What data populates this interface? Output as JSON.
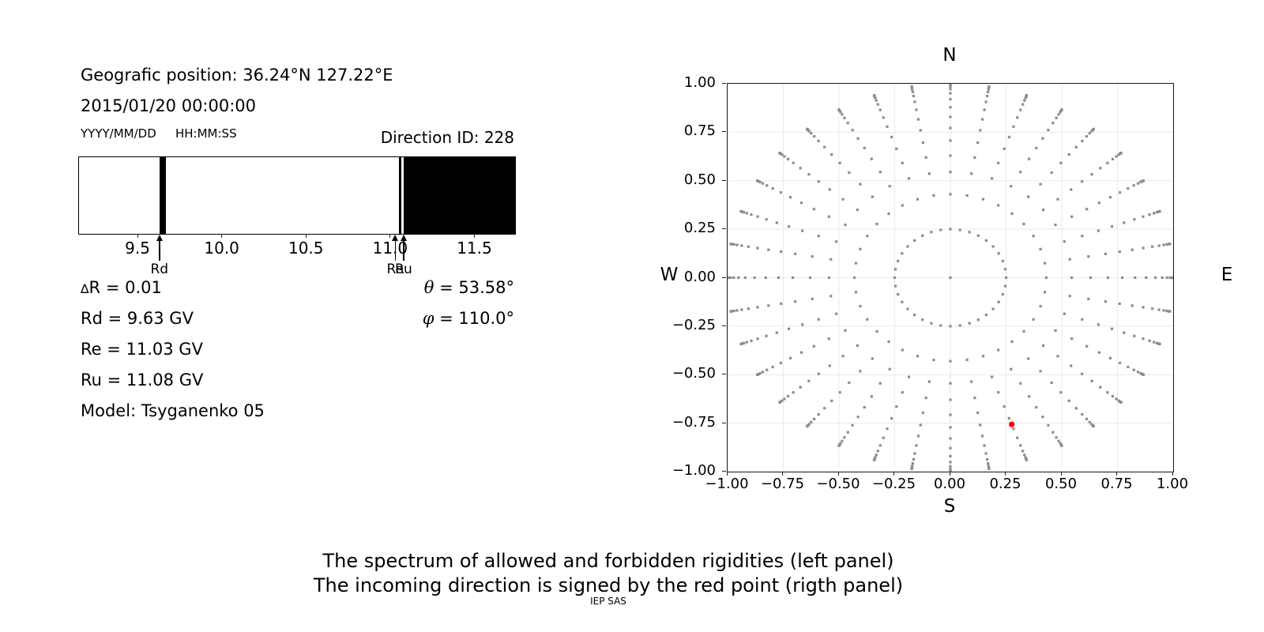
{
  "header": {
    "position_line": "Geografic position: 36.24°N 127.22°E",
    "datetime_line": "2015/01/20 00:00:00",
    "date_format_hint": "YYYY/MM/DD",
    "time_format_hint": "HH:MM:SS",
    "direction_id": "Direction ID: 228"
  },
  "parameters": {
    "delta_r": {
      "symbol": "∆",
      "rest": "R = 0.01"
    },
    "rd": "Rd = 9.63 GV",
    "re": "Re = 11.03 GV",
    "ru": "Ru = 11.08 GV",
    "model": "Model: Tsyganenko 05",
    "theta": {
      "symbol": "θ",
      "rest": " = 53.58°"
    },
    "phi": {
      "symbol": "φ",
      "rest": " = 110.0°"
    }
  },
  "captions": {
    "line1": "The spectrum of allowed and forbidden rigidities (left panel)",
    "line2": "The incoming direction is signed by the red point (rigth panel)",
    "credit": "IEP SAS"
  },
  "chart_data": [
    {
      "type": "bar",
      "name": "rigidity-spectrum",
      "title": "",
      "xlim": [
        9.148,
        11.737
      ],
      "xticks": [
        9.5,
        10.0,
        10.5,
        11.0,
        11.5
      ],
      "xtick_labels": [
        "9.5",
        "10.0",
        "10.5",
        "11.0",
        "11.5"
      ],
      "allowed_color": "#ffffff",
      "forbidden_color": "#000000",
      "forbidden_bands_gv": [
        [
          9.625,
          9.664
        ],
        [
          11.047,
          11.061
        ],
        [
          11.075,
          11.737
        ]
      ],
      "markers": [
        {
          "label": "Rd",
          "value_gv": 9.63
        },
        {
          "label": "Re",
          "value_gv": 11.03
        },
        {
          "label": "Ru",
          "value_gv": 11.08
        }
      ]
    },
    {
      "type": "scatter",
      "name": "incoming-direction-map",
      "compass": {
        "top": "N",
        "bottom": "S",
        "left": "W",
        "right": "E"
      },
      "xlim": [
        -1,
        1
      ],
      "ylim": [
        -1,
        1
      ],
      "xticks": [
        -1,
        -0.75,
        -0.5,
        -0.25,
        0,
        0.25,
        0.5,
        0.75,
        1
      ],
      "yticks": [
        1,
        0.75,
        0.5,
        0.25,
        0,
        -0.25,
        -0.5,
        -0.75,
        -1
      ],
      "xtick_labels": [
        "−1.00",
        "−0.75",
        "−0.50",
        "−0.25",
        "0.00",
        "0.25",
        "0.50",
        "0.75",
        "1.00"
      ],
      "ytick_labels": [
        "1.00",
        "0.75",
        "0.50",
        "0.25",
        "0.00",
        "−0.25",
        "−0.50",
        "−0.75",
        "−1.00"
      ],
      "grid": true,
      "grid_color": "#e9e9e9",
      "dot_color": "#8c8c8c",
      "dot_size_px": 3.2,
      "direction_grid": {
        "azimuth_step_deg": 10,
        "zenith_deg": [
          14.5,
          25.5,
          33,
          39,
          45,
          50.5,
          56,
          61.5,
          67,
          72,
          76.5,
          80.5,
          84,
          87,
          89,
          90
        ],
        "includes_center_dot": true,
        "radius_rule": "r = sin(zenith)",
        "projection": "x = −sin(θ)·cos(φ), y = −sin(θ)·sin(φ)"
      },
      "red_point": {
        "theta_deg": 53.58,
        "phi_deg": 110.0,
        "x": 0.2754,
        "y": -0.7565,
        "color": "#ff0000",
        "radius_px": 3.6
      }
    }
  ]
}
